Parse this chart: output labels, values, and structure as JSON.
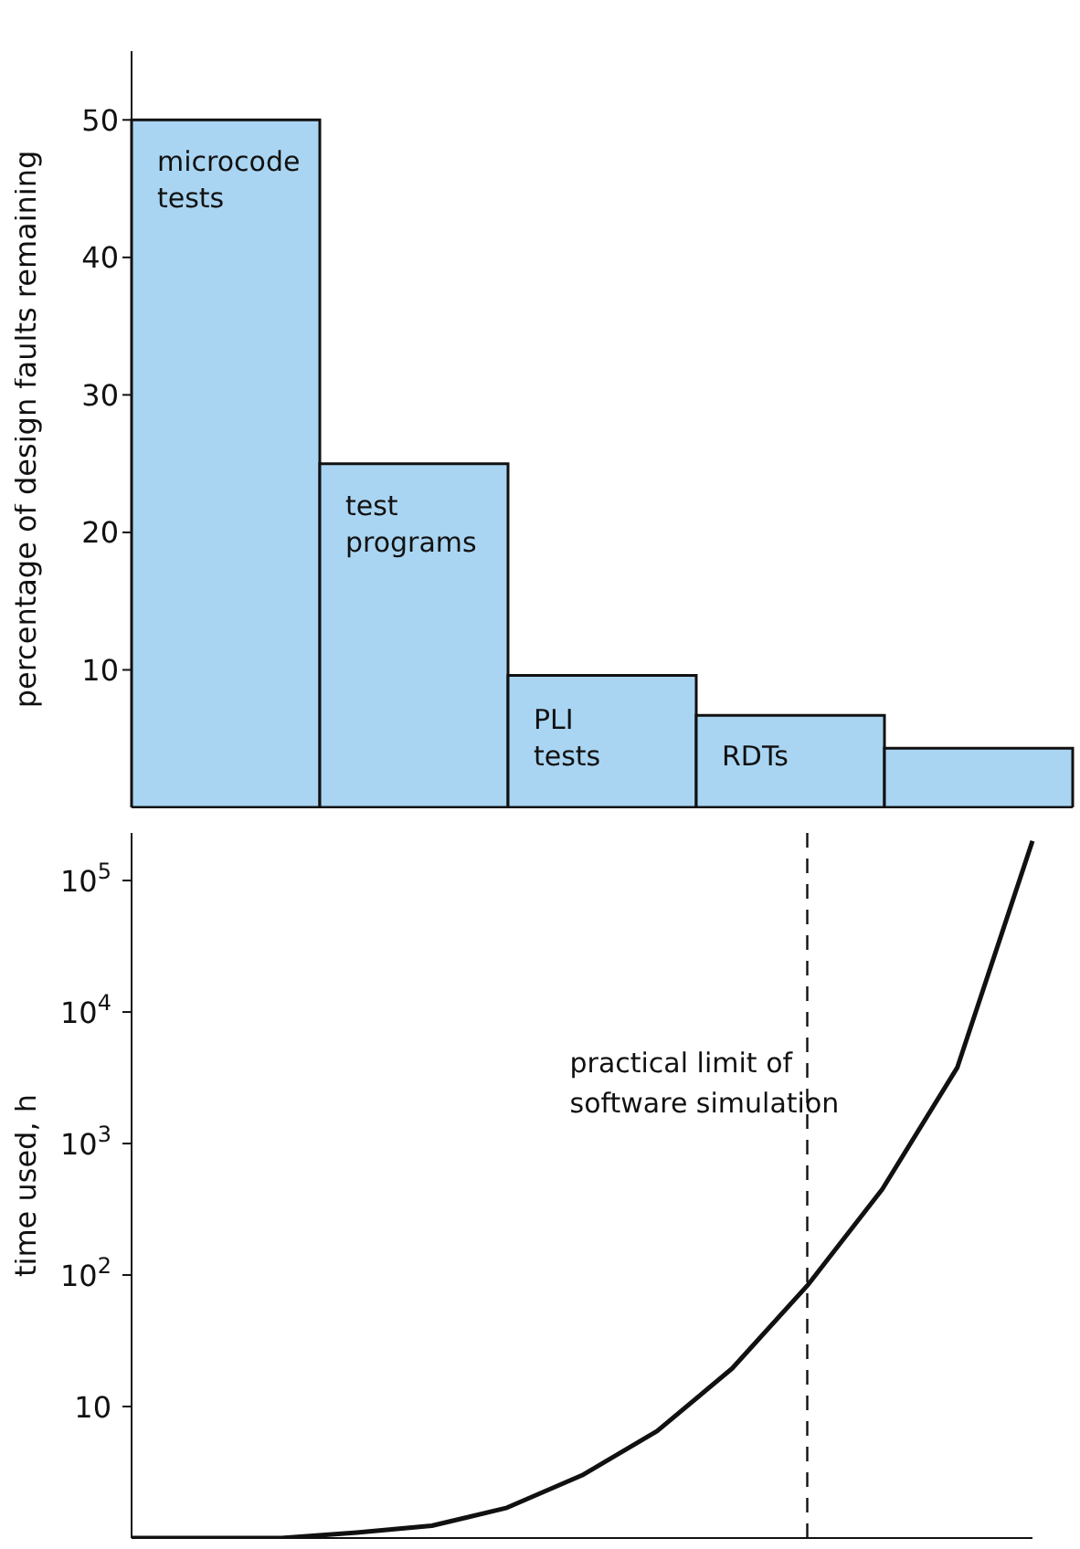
{
  "chart_data": [
    {
      "type": "bar",
      "ylabel": "percentage of design faults remaining",
      "categories": [
        "microcode tests",
        "test programs",
        "PLI tests",
        "RDTs",
        null
      ],
      "values": [
        50,
        25,
        9.6,
        6.7,
        4.3
      ],
      "color": "#a9d5f2",
      "ylim": [
        0,
        55
      ],
      "yticks": [
        10,
        20,
        30,
        40,
        50
      ],
      "grid": false
    },
    {
      "type": "line",
      "ylabel": "time used, h",
      "log": "y",
      "categories": [
        null,
        null,
        null,
        null,
        null,
        null,
        null,
        null,
        null,
        null,
        null,
        null,
        null
      ],
      "ylim": [
        1,
        230000
      ],
      "yticks": [
        {
          "value": 10,
          "label": "10"
        },
        {
          "value": 100,
          "label": "10$^{2}$"
        },
        {
          "value": 1000,
          "label": "10$^{3}$"
        },
        {
          "value": 10000,
          "label": "10$^{4}$"
        },
        {
          "value": 100000,
          "label": "10$^{5}$"
        }
      ],
      "series": [
        {
          "color": "#111111",
          "values": [
            1,
            1,
            1,
            1.1,
            1.24,
            1.7,
            3,
            6.5,
            19.5,
            83,
            450,
            3800,
            200000
          ]
        }
      ],
      "annotations": [
        "practical limit of software simulation"
      ],
      "grid": false
    }
  ]
}
